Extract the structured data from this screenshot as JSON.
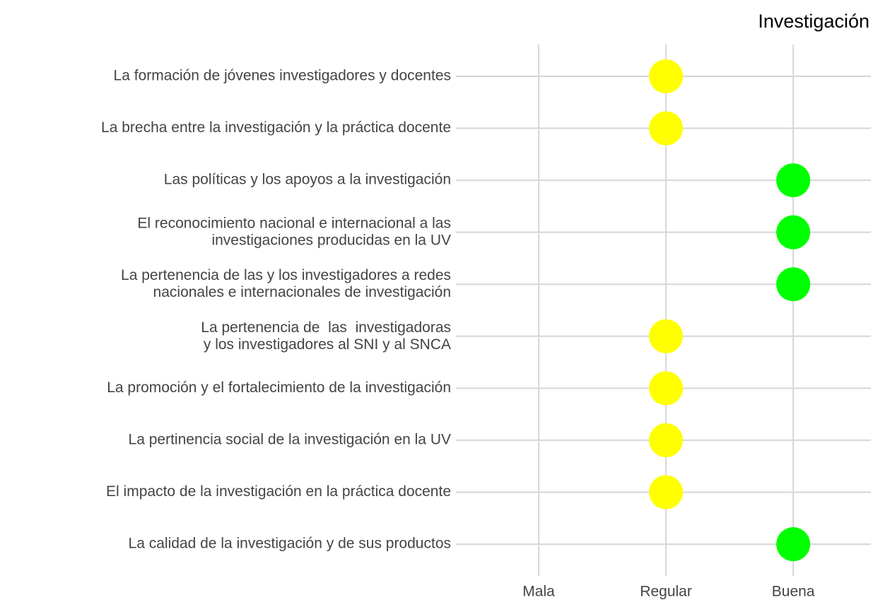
{
  "chart_data": {
    "type": "dot",
    "title": "Investigación",
    "categories": [
      "La formación de jóvenes investigadores y docentes",
      "La brecha entre la investigación y la práctica docente",
      "Las políticas y los apoyos a la investigación",
      "El reconocimiento nacional e internacional a las\ninvestigaciones producidas en la UV",
      "La pertenencia de las y los investigadores a redes\nnacionales e internacionales de investigación",
      "La pertenencia de  las  investigadoras\ny los investigadores al SNI y al SNCA",
      "La promoción y el fortalecimiento de la investigación",
      "La pertinencia social de la investigación en la UV",
      "El impacto de la investigación en la práctica docente",
      "La calidad de la investigación y de sus productos"
    ],
    "values": [
      2,
      2,
      3,
      3,
      3,
      2,
      2,
      2,
      2,
      3
    ],
    "colors": [
      "#ffff00",
      "#ffff00",
      "#00ff00",
      "#00ff00",
      "#00ff00",
      "#ffff00",
      "#ffff00",
      "#ffff00",
      "#ffff00",
      "#00ff00"
    ],
    "xlim": [
      0.35,
      3.61
    ],
    "xticks": [
      {
        "value": 1,
        "label": "Mala"
      },
      {
        "value": 2,
        "label": "Regular"
      },
      {
        "value": 3,
        "label": "Buena"
      }
    ],
    "grid": true
  }
}
